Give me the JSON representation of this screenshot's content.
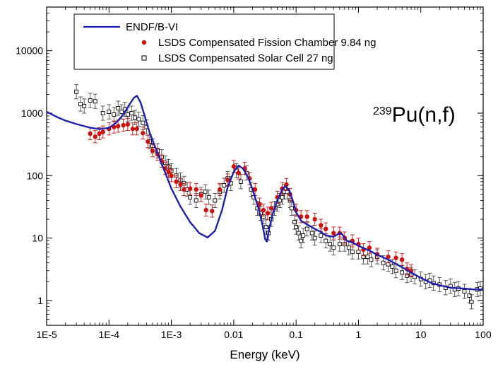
{
  "chart_data": {
    "type": "scatter",
    "xlabel": "Energy (keV)",
    "x_scale": "log",
    "y_scale": "log",
    "xlim": [
      1e-05,
      100
    ],
    "ylim": [
      0.4,
      50000
    ],
    "x_ticks": [
      {
        "value": 1e-05,
        "label": "1E-5"
      },
      {
        "value": 0.0001,
        "label": "1E-4"
      },
      {
        "value": 0.001,
        "label": "1E-3"
      },
      {
        "value": 0.01,
        "label": "0.01"
      },
      {
        "value": 0.1,
        "label": "0.1"
      },
      {
        "value": 1,
        "label": "1"
      },
      {
        "value": 10,
        "label": "10"
      },
      {
        "value": 100,
        "label": "100"
      }
    ],
    "y_ticks": [
      {
        "value": 1,
        "label": "1"
      },
      {
        "value": 10,
        "label": "10"
      },
      {
        "value": 100,
        "label": "100"
      },
      {
        "value": 1000,
        "label": "1000"
      },
      {
        "value": 10000,
        "label": "10000"
      }
    ],
    "annotation": {
      "superscript": "239",
      "text": "Pu(n,f)"
    },
    "legend_position": "top",
    "series": [
      {
        "name": "ENDF/B-VI",
        "kind": "line",
        "color": "#1f1fb0",
        "points": [
          [
            1e-05,
            1050
          ],
          [
            1.5e-05,
            860
          ],
          [
            2e-05,
            760
          ],
          [
            3e-05,
            670
          ],
          [
            5e-05,
            585
          ],
          [
            7e-05,
            555
          ],
          [
            0.0001,
            580
          ],
          [
            0.00013,
            700
          ],
          [
            0.00017,
            950
          ],
          [
            0.00021,
            1350
          ],
          [
            0.00025,
            1750
          ],
          [
            0.00028,
            1900
          ],
          [
            0.00032,
            1500
          ],
          [
            0.00038,
            850
          ],
          [
            0.00045,
            480
          ],
          [
            0.0006,
            230
          ],
          [
            0.0008,
            110
          ],
          [
            0.001,
            62
          ],
          [
            0.0014,
            32
          ],
          [
            0.002,
            18
          ],
          [
            0.0028,
            12
          ],
          [
            0.0038,
            10.2
          ],
          [
            0.005,
            13
          ],
          [
            0.0065,
            28
          ],
          [
            0.008,
            65
          ],
          [
            0.01,
            115
          ],
          [
            0.012,
            145
          ],
          [
            0.014,
            130
          ],
          [
            0.017,
            95
          ],
          [
            0.02,
            60
          ],
          [
            0.025,
            30
          ],
          [
            0.029,
            16
          ],
          [
            0.032,
            9.5
          ],
          [
            0.034,
            8.8
          ],
          [
            0.037,
            14
          ],
          [
            0.042,
            24
          ],
          [
            0.05,
            40
          ],
          [
            0.06,
            60
          ],
          [
            0.068,
            68
          ],
          [
            0.078,
            58
          ],
          [
            0.09,
            38
          ],
          [
            0.1,
            26
          ],
          [
            0.12,
            19
          ],
          [
            0.15,
            16.5
          ],
          [
            0.2,
            14
          ],
          [
            0.25,
            12.5
          ],
          [
            0.3,
            11
          ],
          [
            0.4,
            10.5
          ],
          [
            0.5,
            12
          ],
          [
            0.55,
            11.5
          ],
          [
            0.65,
            9
          ],
          [
            0.8,
            8.5
          ],
          [
            1,
            7.5
          ],
          [
            1.5,
            6.3
          ],
          [
            2,
            5.4
          ],
          [
            3,
            4.5
          ],
          [
            5,
            3.4
          ],
          [
            7,
            2.8
          ],
          [
            10,
            2.3
          ],
          [
            15,
            1.9
          ],
          [
            20,
            1.75
          ],
          [
            30,
            1.6
          ],
          [
            50,
            1.55
          ],
          [
            70,
            1.5
          ],
          [
            100,
            1.5
          ]
        ]
      },
      {
        "name": "LSDS Compensated Fission Chamber 9.84 ng",
        "kind": "points",
        "color": "#cc1111",
        "points": [
          [
            5e-05,
            470
          ],
          [
            6e-05,
            420
          ],
          [
            7e-05,
            470
          ],
          [
            8e-05,
            500
          ],
          [
            0.0001,
            560
          ],
          [
            0.00012,
            600
          ],
          [
            0.00014,
            620
          ],
          [
            0.00017,
            640
          ],
          [
            0.0002,
            660
          ],
          [
            0.00024,
            560
          ],
          [
            0.00028,
            560
          ],
          [
            0.00035,
            480
          ],
          [
            0.00042,
            350
          ],
          [
            0.0005,
            250
          ],
          [
            0.0006,
            220
          ],
          [
            0.0007,
            170
          ],
          [
            0.0008,
            130
          ],
          [
            0.0009,
            115
          ],
          [
            0.001,
            100
          ],
          [
            0.0012,
            80
          ],
          [
            0.0014,
            72
          ],
          [
            0.0016,
            60
          ],
          [
            0.002,
            62
          ],
          [
            0.0025,
            60
          ],
          [
            0.003,
            48
          ],
          [
            0.0036,
            28
          ],
          [
            0.0045,
            27
          ],
          [
            0.006,
            60
          ],
          [
            0.008,
            85
          ],
          [
            0.01,
            140
          ],
          [
            0.012,
            110
          ],
          [
            0.015,
            130
          ],
          [
            0.018,
            90
          ],
          [
            0.022,
            60
          ],
          [
            0.026,
            35
          ],
          [
            0.03,
            28
          ],
          [
            0.035,
            25
          ],
          [
            0.04,
            30
          ],
          [
            0.05,
            45
          ],
          [
            0.06,
            62
          ],
          [
            0.07,
            72
          ],
          [
            0.08,
            50
          ],
          [
            0.1,
            28
          ],
          [
            0.12,
            22
          ],
          [
            0.15,
            22
          ],
          [
            0.2,
            20
          ],
          [
            0.25,
            16
          ],
          [
            0.3,
            14
          ],
          [
            0.4,
            12
          ],
          [
            0.5,
            12
          ],
          [
            0.6,
            10
          ],
          [
            0.8,
            9
          ],
          [
            1,
            8
          ],
          [
            1.2,
            6.5
          ],
          [
            1.5,
            7
          ],
          [
            2,
            5.5
          ],
          [
            3,
            5
          ],
          [
            4,
            4.8
          ],
          [
            5,
            4.5
          ],
          [
            6,
            3.2
          ],
          [
            7,
            3.0
          ]
        ]
      },
      {
        "name": "LSDS Compensated Solar Cell 27 ng",
        "kind": "points",
        "color": "#000000",
        "points": [
          [
            3e-05,
            2200
          ],
          [
            3.5e-05,
            1400
          ],
          [
            4e-05,
            1300
          ],
          [
            5e-05,
            1600
          ],
          [
            6e-05,
            1550
          ],
          [
            8e-05,
            1000
          ],
          [
            0.0001,
            1050
          ],
          [
            0.00012,
            950
          ],
          [
            0.00014,
            1200
          ],
          [
            0.00016,
            1050
          ],
          [
            0.00018,
            1150
          ],
          [
            0.0002,
            950
          ],
          [
            0.00023,
            1000
          ],
          [
            0.00026,
            850
          ],
          [
            0.0003,
            800
          ],
          [
            0.00035,
            700
          ],
          [
            0.0004,
            600
          ],
          [
            0.00045,
            350
          ],
          [
            0.0005,
            300
          ],
          [
            0.0006,
            250
          ],
          [
            0.0007,
            200
          ],
          [
            0.0008,
            160
          ],
          [
            0.0009,
            140
          ],
          [
            0.001,
            120
          ],
          [
            0.0012,
            100
          ],
          [
            0.0014,
            85
          ],
          [
            0.0016,
            75
          ],
          [
            0.0018,
            60
          ],
          [
            0.002,
            45
          ],
          [
            0.0025,
            40
          ],
          [
            0.003,
            50
          ],
          [
            0.0035,
            55
          ],
          [
            0.004,
            45
          ],
          [
            0.005,
            40
          ],
          [
            0.006,
            55
          ],
          [
            0.007,
            70
          ],
          [
            0.008,
            90
          ],
          [
            0.009,
            75
          ],
          [
            0.011,
            120
          ],
          [
            0.013,
            80
          ],
          [
            0.016,
            110
          ],
          [
            0.019,
            60
          ],
          [
            0.021,
            45
          ],
          [
            0.024,
            30
          ],
          [
            0.027,
            25
          ],
          [
            0.03,
            22
          ],
          [
            0.033,
            15
          ],
          [
            0.036,
            12
          ],
          [
            0.04,
            20
          ],
          [
            0.045,
            30
          ],
          [
            0.05,
            35
          ],
          [
            0.055,
            40
          ],
          [
            0.06,
            45
          ],
          [
            0.065,
            55
          ],
          [
            0.072,
            55
          ],
          [
            0.08,
            40
          ],
          [
            0.085,
            30
          ],
          [
            0.095,
            18
          ],
          [
            0.1,
            15
          ],
          [
            0.11,
            12
          ],
          [
            0.12,
            9
          ],
          [
            0.13,
            11
          ],
          [
            0.15,
            14
          ],
          [
            0.18,
            12
          ],
          [
            0.2,
            10
          ],
          [
            0.25,
            11
          ],
          [
            0.3,
            9
          ],
          [
            0.35,
            8
          ],
          [
            0.4,
            7
          ],
          [
            0.5,
            8
          ],
          [
            0.6,
            8
          ],
          [
            0.7,
            7
          ],
          [
            0.8,
            6
          ],
          [
            1,
            6
          ],
          [
            1.2,
            5
          ],
          [
            1.4,
            5
          ],
          [
            1.6,
            4.5
          ],
          [
            2,
            5
          ],
          [
            2.5,
            4
          ],
          [
            3,
            3.8
          ],
          [
            3.5,
            3.5
          ],
          [
            4,
            3
          ],
          [
            5,
            2.8
          ],
          [
            6,
            2.5
          ],
          [
            7,
            2.6
          ],
          [
            8,
            2.4
          ],
          [
            10,
            2.2
          ],
          [
            12,
            2.0
          ],
          [
            14,
            2.1
          ],
          [
            16,
            1.9
          ],
          [
            20,
            1.8
          ],
          [
            25,
            1.6
          ],
          [
            30,
            1.7
          ],
          [
            35,
            1.5
          ],
          [
            40,
            1.55
          ],
          [
            50,
            1.4
          ],
          [
            60,
            1.2
          ],
          [
            65,
            0.95
          ],
          [
            80,
            1.5
          ],
          [
            90,
            1.55
          ]
        ]
      }
    ]
  }
}
